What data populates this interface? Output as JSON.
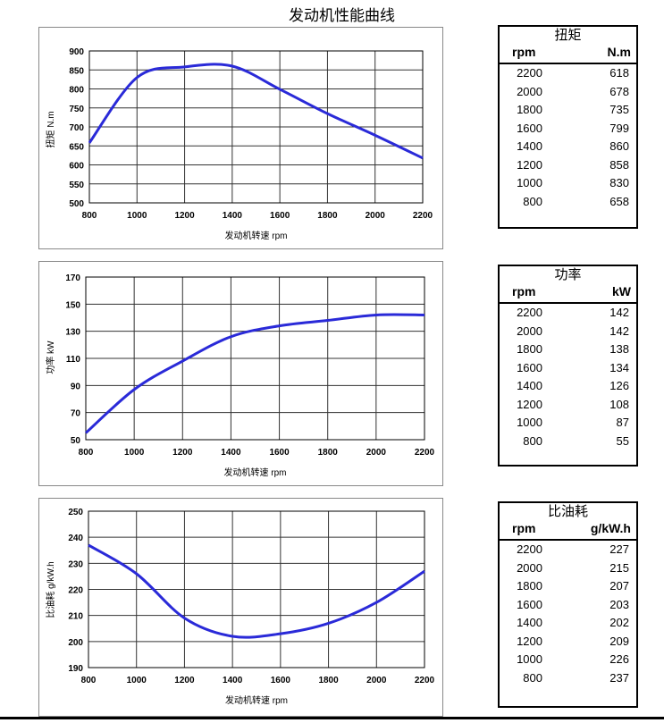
{
  "title": "发动机性能曲线",
  "chart_data": [
    {
      "type": "line",
      "xlabel": "发动机转速 rpm",
      "ylabel": "扭矩 N.m",
      "xlim": [
        800,
        2200
      ],
      "ylim": [
        500,
        900
      ],
      "xticks": [
        800,
        1000,
        1200,
        1400,
        1600,
        1800,
        2000,
        2200
      ],
      "yticks": [
        500,
        550,
        600,
        650,
        700,
        750,
        800,
        850,
        900
      ],
      "grid": true,
      "color": "#2a2ad8",
      "x": [
        800,
        1000,
        1200,
        1400,
        1600,
        1800,
        2000,
        2200
      ],
      "y": [
        658,
        830,
        858,
        860,
        799,
        735,
        678,
        618
      ]
    },
    {
      "type": "line",
      "xlabel": "发动机转速 rpm",
      "ylabel": "功率 kW",
      "xlim": [
        800,
        2200
      ],
      "ylim": [
        50,
        170
      ],
      "xticks": [
        800,
        1000,
        1200,
        1400,
        1600,
        1800,
        2000,
        2200
      ],
      "yticks": [
        50,
        70,
        90,
        110,
        130,
        150,
        170
      ],
      "grid": true,
      "color": "#2a2ad8",
      "x": [
        800,
        1000,
        1200,
        1400,
        1600,
        1800,
        2000,
        2200
      ],
      "y": [
        55,
        87,
        108,
        126,
        134,
        138,
        142,
        142
      ]
    },
    {
      "type": "line",
      "xlabel": "发动机转速 rpm",
      "ylabel": "比油耗 g/kW.h",
      "xlim": [
        800,
        2200
      ],
      "ylim": [
        190,
        250
      ],
      "xticks": [
        800,
        1000,
        1200,
        1400,
        1600,
        1800,
        2000,
        2200
      ],
      "yticks": [
        190,
        200,
        210,
        220,
        230,
        240,
        250
      ],
      "grid": true,
      "color": "#2a2ad8",
      "x": [
        800,
        1000,
        1200,
        1400,
        1600,
        1800,
        2000,
        2200
      ],
      "y": [
        237,
        226,
        209,
        202,
        203,
        207,
        215,
        227
      ]
    }
  ],
  "tables": [
    {
      "title": "扭矩",
      "col1": "rpm",
      "col2": "N.m",
      "rows": [
        [
          "2200",
          "618"
        ],
        [
          "2000",
          "678"
        ],
        [
          "1800",
          "735"
        ],
        [
          "1600",
          "799"
        ],
        [
          "1400",
          "860"
        ],
        [
          "1200",
          "858"
        ],
        [
          "1000",
          "830"
        ],
        [
          "800",
          "658"
        ]
      ]
    },
    {
      "title": "功率",
      "col1": "rpm",
      "col2": "kW",
      "rows": [
        [
          "2200",
          "142"
        ],
        [
          "2000",
          "142"
        ],
        [
          "1800",
          "138"
        ],
        [
          "1600",
          "134"
        ],
        [
          "1400",
          "126"
        ],
        [
          "1200",
          "108"
        ],
        [
          "1000",
          "87"
        ],
        [
          "800",
          "55"
        ]
      ]
    },
    {
      "title": "比油耗",
      "col1": "rpm",
      "col2": "g/kW.h",
      "rows": [
        [
          "2200",
          "227"
        ],
        [
          "2000",
          "215"
        ],
        [
          "1800",
          "207"
        ],
        [
          "1600",
          "203"
        ],
        [
          "1400",
          "202"
        ],
        [
          "1200",
          "209"
        ],
        [
          "1000",
          "226"
        ],
        [
          "800",
          "237"
        ]
      ]
    }
  ]
}
